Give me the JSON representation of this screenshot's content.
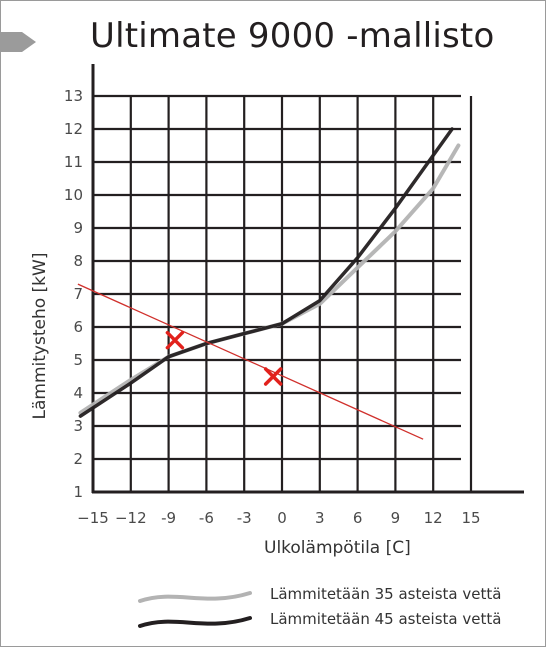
{
  "title": "Ultimate 9000 -mallisto",
  "chart_data": {
    "type": "line",
    "title": "Ultimate 9000 -mallisto",
    "xlabel": "Ulkolämpötila [C]",
    "ylabel": "Lämmitysteho [kW]",
    "xlim": [
      -15,
      15
    ],
    "ylim": [
      1,
      13
    ],
    "x_ticks": [
      -15,
      -12,
      -9,
      -6,
      -3,
      0,
      3,
      6,
      9,
      12,
      15
    ],
    "y_ticks": [
      1,
      2,
      3,
      4,
      5,
      6,
      7,
      8,
      9,
      10,
      11,
      12,
      13
    ],
    "x_tick_labels": [
      "−15",
      "−12",
      "-9",
      "-6",
      "-3",
      "0",
      "3",
      "6",
      "9",
      "12",
      "15"
    ],
    "grid": true,
    "legend_position": "bottom",
    "series": [
      {
        "name": "Lämmitetään 35 asteista vettä",
        "color": "#b3b3b3",
        "x": [
          -16,
          -12,
          -9,
          -6,
          -3,
          0,
          3,
          6,
          9,
          12,
          14
        ],
        "y": [
          3.4,
          4.4,
          5.1,
          5.5,
          5.8,
          6.1,
          6.7,
          7.8,
          8.9,
          10.2,
          11.5
        ]
      },
      {
        "name": "Lämmitetään 45 asteista vettä",
        "color": "#231f20",
        "x": [
          -16,
          -12,
          -9,
          -6,
          -3,
          0,
          3,
          6,
          9,
          12,
          13.5
        ],
        "y": [
          3.3,
          4.3,
          5.1,
          5.5,
          5.8,
          6.1,
          6.8,
          8.1,
          9.6,
          11.2,
          12.0
        ]
      }
    ],
    "annotations": {
      "line": {
        "color": "#d0302c",
        "x": [
          -16.2,
          11.2
        ],
        "y": [
          7.3,
          2.6
        ]
      },
      "markers": {
        "color": "#e2211c",
        "symbol": "x",
        "points": [
          {
            "x": -8.5,
            "y": 5.6
          },
          {
            "x": -0.7,
            "y": 4.5
          }
        ]
      }
    }
  },
  "legend": {
    "items": [
      {
        "label": "Lämmitetään 35 asteista vettä",
        "color": "#b3b3b3"
      },
      {
        "label": "Lämmitetään 45 asteista vettä",
        "color": "#231f20"
      }
    ]
  }
}
